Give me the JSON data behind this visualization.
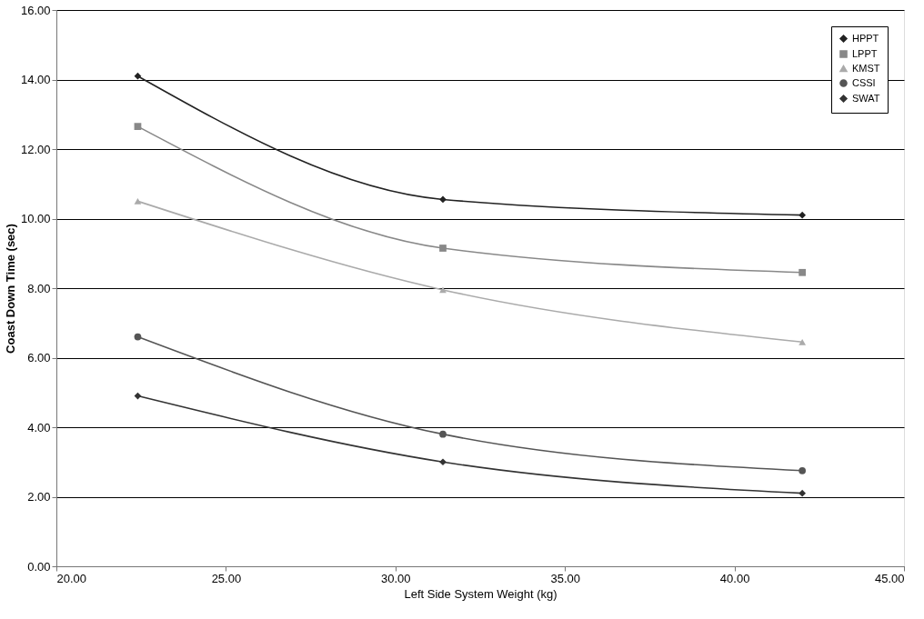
{
  "chart_data": {
    "type": "line",
    "xlabel": "Left Side System Weight (kg)",
    "ylabel": "Coast Down Time (sec)",
    "x": [
      22.4,
      31.4,
      42.0
    ],
    "series": [
      {
        "name": "HPPT",
        "color": "#222222",
        "marker": "diamond",
        "values": [
          14.1,
          10.55,
          10.1
        ]
      },
      {
        "name": "LPPT",
        "color": "#888888",
        "marker": "square",
        "values": [
          12.65,
          9.15,
          8.45
        ]
      },
      {
        "name": "KMST",
        "color": "#aaaaaa",
        "marker": "triangle",
        "values": [
          10.5,
          7.95,
          6.45
        ]
      },
      {
        "name": "CSSI",
        "color": "#555555",
        "marker": "circle",
        "values": [
          6.6,
          3.8,
          2.75
        ]
      },
      {
        "name": "SWAT",
        "color": "#333333",
        "marker": "diamond",
        "values": [
          4.9,
          3.0,
          2.1
        ]
      }
    ],
    "xlim": [
      20,
      45
    ],
    "xticks": [
      {
        "value": 20,
        "label": "20.00"
      },
      {
        "value": 25,
        "label": "25.00"
      },
      {
        "value": 30,
        "label": "30.00"
      },
      {
        "value": 35,
        "label": "35.00"
      },
      {
        "value": 40,
        "label": "40.00"
      },
      {
        "value": 45,
        "label": "45.00"
      }
    ],
    "ylim": [
      0,
      16
    ],
    "yticks": [
      {
        "value": 0,
        "label": "0.00"
      },
      {
        "value": 2,
        "label": "2.00"
      },
      {
        "value": 4,
        "label": "4.00"
      },
      {
        "value": 6,
        "label": "6.00"
      },
      {
        "value": 8,
        "label": "8.00"
      },
      {
        "value": 10,
        "label": "10.00"
      },
      {
        "value": 12,
        "label": "12.00"
      },
      {
        "value": 14,
        "label": "14.00"
      },
      {
        "value": 16,
        "label": "16.00"
      }
    ],
    "grid": "y",
    "legend": "top right"
  }
}
